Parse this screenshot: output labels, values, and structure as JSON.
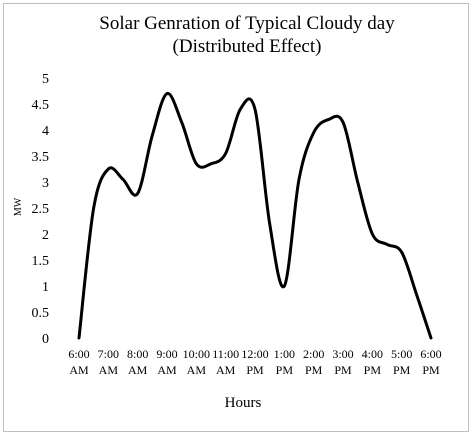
{
  "chart_data": {
    "type": "line",
    "title": "Solar Genration of Typical Cloudy day",
    "subtitle": "(Distributed Effect)",
    "xlabel": "Hours",
    "ylabel": "MW",
    "ylim": [
      0,
      5
    ],
    "y_ticks": [
      "0",
      "0.5",
      "1",
      "1.5",
      "2",
      "2.5",
      "3",
      "3.5",
      "4",
      "4.5",
      "5"
    ],
    "categories": [
      [
        "6:00",
        "AM"
      ],
      [
        "7:00",
        "AM"
      ],
      [
        "8:00",
        "AM"
      ],
      [
        "9:00",
        "AM"
      ],
      [
        "10:00",
        "AM"
      ],
      [
        "11:00",
        "AM"
      ],
      [
        "12:00",
        "PM"
      ],
      [
        "1:00",
        "PM"
      ],
      [
        "2:00",
        "PM"
      ],
      [
        "3:00",
        "PM"
      ],
      [
        "4:00",
        "PM"
      ],
      [
        "5:00",
        "PM"
      ],
      [
        "6:00",
        "PM"
      ]
    ],
    "x_values": [
      "6:00 AM",
      "6:30 AM",
      "7:00 AM",
      "7:30 AM",
      "8:00 AM",
      "8:30 AM",
      "9:00 AM",
      "9:30 AM",
      "10:00 AM",
      "10:30 AM",
      "11:00 AM",
      "11:30 AM",
      "12:00 PM",
      "12:30 PM",
      "1:00 PM",
      "1:30 PM",
      "2:00 PM",
      "2:30 PM",
      "3:00 PM",
      "3:30 PM",
      "4:00 PM",
      "4:30 PM",
      "5:00 PM",
      "5:30 PM",
      "6:00 PM"
    ],
    "series": [
      {
        "values": [
          0,
          2.5,
          3.25,
          3.05,
          2.78,
          3.9,
          4.7,
          4.15,
          3.35,
          3.35,
          3.55,
          4.4,
          4.4,
          2.2,
          1.0,
          3.05,
          3.95,
          4.2,
          4.15,
          3.0,
          2.0,
          1.8,
          1.65,
          0.85,
          0
        ]
      }
    ],
    "line_color": "#000000",
    "grid": false,
    "legend": "none"
  }
}
